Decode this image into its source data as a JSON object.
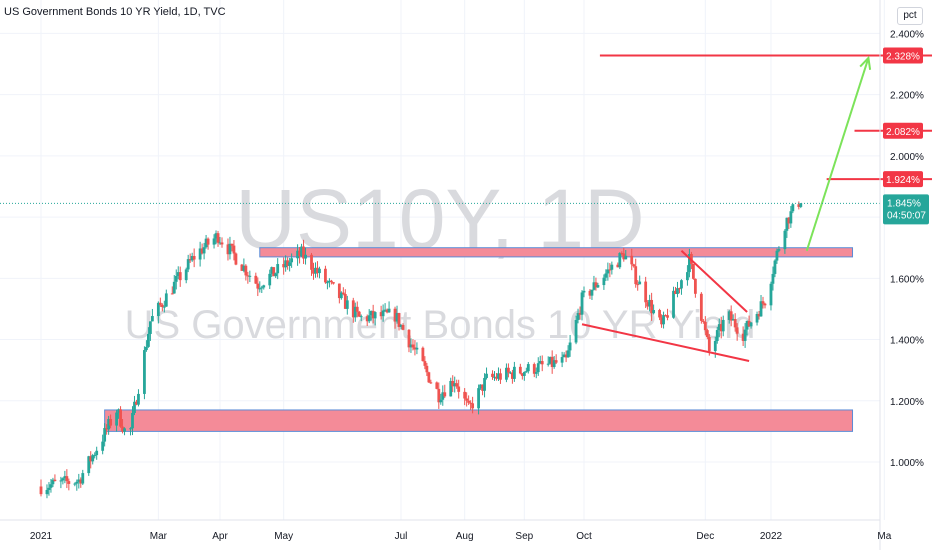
{
  "header": {
    "title": "US Government Bonds 10 YR Yield, 1D, TVC",
    "unit": "pct"
  },
  "watermark": {
    "symbol": "US10Y, 1D",
    "description": "US Government Bonds 10 YR Yield"
  },
  "colors": {
    "up": "#26a69a",
    "down": "#ef5350",
    "line_red": "#f23645",
    "zone_fill": "#f48b98",
    "zone_border": "#5b8bd6",
    "arrow": "#7ce35a",
    "last_price": "#26a69a"
  },
  "chart_data": {
    "type": "candlestick",
    "title": "US Government Bonds 10 YR Yield, 1D, TVC",
    "ylim": [
      0.83,
      2.43
    ],
    "y_ticks": [
      "2.400%",
      "2.200%",
      "2.000%",
      "1.600%",
      "1.400%",
      "1.200%",
      "1.000%"
    ],
    "x_ticks": [
      "2021",
      "Mar",
      "Apr",
      "May",
      "Jul",
      "Aug",
      "Sep",
      "Oct",
      "Dec",
      "2022",
      "Ma"
    ],
    "grid": true,
    "last_price": {
      "value": "1.845%",
      "countdown": "04:50:07"
    },
    "price_tags": [
      "2.328%",
      "2.082%",
      "1.924%"
    ],
    "waypoints": [
      [
        "2021-01-01",
        0.92
      ],
      [
        "2021-01-20",
        0.94
      ],
      [
        "2021-02-01",
        1.08
      ],
      [
        "2021-02-08",
        1.17
      ],
      [
        "2021-02-14",
        1.07
      ],
      [
        "2021-02-25",
        1.46
      ],
      [
        "2021-03-08",
        1.57
      ],
      [
        "2021-03-20",
        1.68
      ],
      [
        "2021-03-31",
        1.74
      ],
      [
        "2021-04-20",
        1.58
      ],
      [
        "2021-05-12",
        1.68
      ],
      [
        "2021-05-24",
        1.59
      ],
      [
        "2021-06-10",
        1.47
      ],
      [
        "2021-06-28",
        1.48
      ],
      [
        "2021-07-20",
        1.22
      ],
      [
        "2021-07-28",
        1.27
      ],
      [
        "2021-08-04",
        1.17
      ],
      [
        "2021-08-13",
        1.27
      ],
      [
        "2021-09-01",
        1.3
      ],
      [
        "2021-09-22",
        1.33
      ],
      [
        "2021-09-30",
        1.53
      ],
      [
        "2021-10-21",
        1.68
      ],
      [
        "2021-11-09",
        1.44
      ],
      [
        "2021-11-23",
        1.66
      ],
      [
        "2021-12-03",
        1.36
      ],
      [
        "2021-12-12",
        1.48
      ],
      [
        "2021-12-20",
        1.42
      ],
      [
        "2021-12-31",
        1.53
      ],
      [
        "2022-01-10",
        1.78
      ],
      [
        "2022-01-18",
        1.86
      ]
    ],
    "annotations": {
      "horizontal_lines": [
        {
          "price": 2.328,
          "from": "2021-10-09",
          "to": "2022-03-31"
        },
        {
          "price": 2.082,
          "from": "2022-02-14",
          "to": "2022-03-31"
        },
        {
          "price": 1.924,
          "from": "2022-01-31",
          "to": "2022-03-31"
        }
      ],
      "rectangles": [
        {
          "from": "2021-04-21",
          "to": "2022-02-13",
          "top": 1.7,
          "bottom": 1.67
        },
        {
          "from": "2021-02-02",
          "to": "2022-02-13",
          "top": 1.17,
          "bottom": 1.1
        }
      ],
      "trendlines": [
        {
          "from": [
            "2021-09-30",
            1.45
          ],
          "to": [
            "2021-12-23",
            1.33
          ]
        },
        {
          "from": [
            "2021-11-19",
            1.69
          ],
          "to": [
            "2021-12-22",
            1.49
          ]
        }
      ],
      "arrow": {
        "from": [
          "2022-01-21",
          1.69
        ],
        "to": [
          "2022-02-21",
          2.32
        ]
      }
    }
  }
}
